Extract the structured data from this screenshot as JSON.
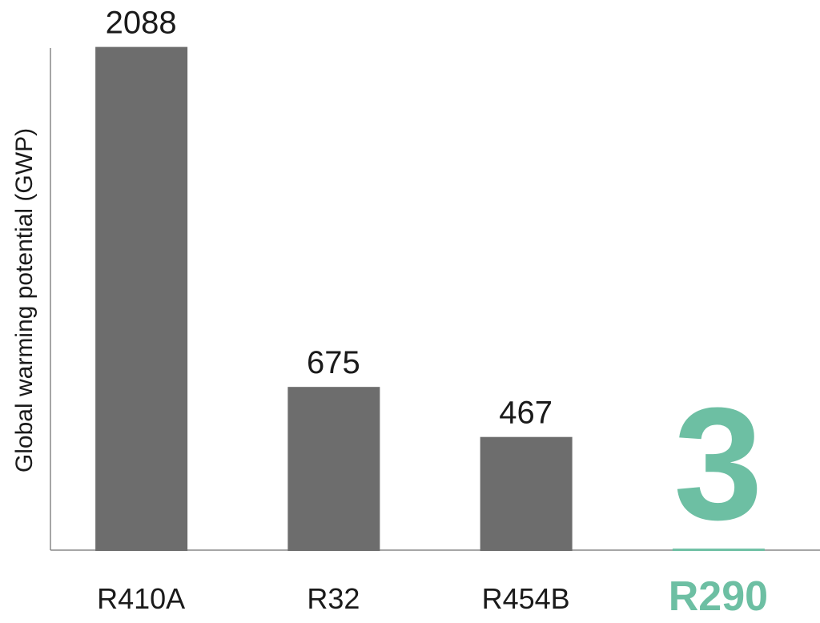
{
  "chart_data": {
    "type": "bar",
    "y_label": "Global warming potential  (GWP)",
    "categories": [
      "R410A",
      "R32",
      "R454B",
      "R290"
    ],
    "values": [
      2088,
      675,
      467,
      3
    ],
    "colors": [
      "#6d6d6d",
      "#6d6d6d",
      "#6d6d6d",
      "#6dbfa3"
    ],
    "ylim": [
      0,
      2100
    ]
  }
}
